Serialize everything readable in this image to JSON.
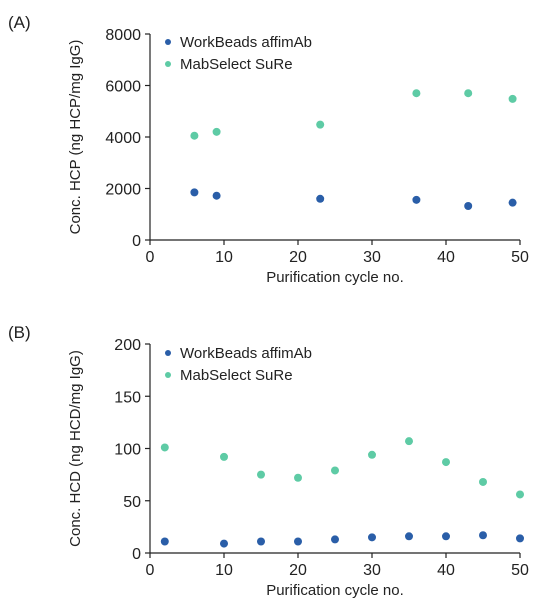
{
  "colors": {
    "series_1": "#2a5ea8",
    "series_2": "#5ecba5",
    "axis": "#222222"
  },
  "chart_data": [
    {
      "panel_label": "(A)",
      "type": "scatter",
      "xlabel": "Purification cycle no.",
      "ylabel": "Conc. HCP (ng HCP/mg IgG)",
      "xlim": [
        0,
        50
      ],
      "ylim": [
        0,
        8000
      ],
      "x_ticks": [
        "0",
        "10",
        "20",
        "30",
        "40",
        "50"
      ],
      "y_ticks": [
        "0",
        "2000",
        "4000",
        "6000",
        "8000"
      ],
      "grid": false,
      "legend_position": "top-left",
      "series": [
        {
          "name": "WorkBeads affimAb",
          "color": "#2a5ea8",
          "x": [
            6,
            9,
            23,
            36,
            43,
            49
          ],
          "y": [
            1850,
            1720,
            1600,
            1560,
            1320,
            1450
          ]
        },
        {
          "name": "MabSelect SuRe",
          "color": "#5ecba5",
          "x": [
            6,
            9,
            23,
            36,
            43,
            49
          ],
          "y": [
            4050,
            4200,
            4480,
            5700,
            5700,
            5480
          ]
        }
      ]
    },
    {
      "panel_label": "(B)",
      "type": "scatter",
      "xlabel": "Purification cycle no.",
      "ylabel": "Conc. HCD (ng HCD/mg IgG)",
      "xlim": [
        0,
        50
      ],
      "ylim": [
        0,
        200
      ],
      "x_ticks": [
        "0",
        "10",
        "20",
        "30",
        "40",
        "50"
      ],
      "y_ticks": [
        "0",
        "50",
        "100",
        "150",
        "200"
      ],
      "grid": false,
      "legend_position": "top-left",
      "series": [
        {
          "name": "WorkBeads affimAb",
          "color": "#2a5ea8",
          "x": [
            2,
            10,
            15,
            20,
            25,
            30,
            35,
            40,
            45,
            50
          ],
          "y": [
            11,
            9,
            11,
            11,
            13,
            15,
            16,
            16,
            17,
            14
          ]
        },
        {
          "name": "MabSelect SuRe",
          "color": "#5ecba5",
          "x": [
            2,
            10,
            15,
            20,
            25,
            30,
            35,
            40,
            45,
            50
          ],
          "y": [
            101,
            92,
            75,
            72,
            79,
            94,
            107,
            87,
            68,
            56
          ]
        }
      ]
    }
  ]
}
